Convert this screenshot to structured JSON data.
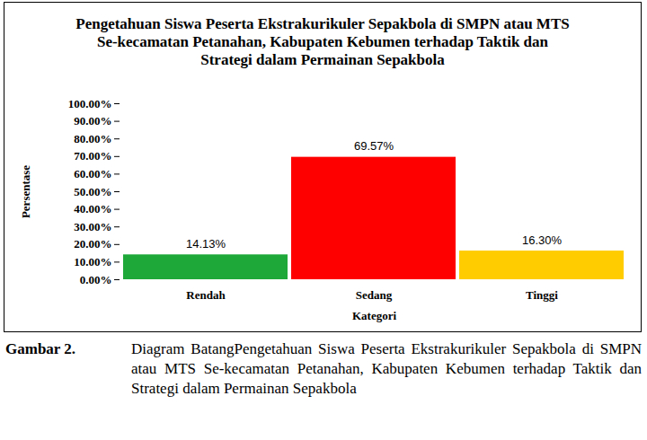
{
  "chart_data": {
    "type": "bar",
    "title": "Pengetahuan Siswa Peserta Ekstrakurikuler Sepakbola di SMPN atau MTS  Se-kecamatan Petanahan, Kabupaten Kebumen terhadap Taktik dan Strategi dalam Permainan Sepakbola",
    "x_label": "Kategori",
    "y_label": "Persentase",
    "categories": [
      "Rendah",
      "Sedang",
      "Tinggi"
    ],
    "values": [
      14.13,
      69.57,
      16.3
    ],
    "value_labels": [
      "14.13%",
      "69.57%",
      "16.30%"
    ],
    "colors": [
      "#1fa83a",
      "#ff0000",
      "#ffcc00"
    ],
    "data_labels": true,
    "grid": false,
    "ylim": [
      0,
      100
    ],
    "yticks": [
      {
        "value": 0,
        "label": "0.00%"
      },
      {
        "value": 10,
        "label": "10.00%"
      },
      {
        "value": 20,
        "label": "20.00%"
      },
      {
        "value": 30,
        "label": "30.00%"
      },
      {
        "value": 40,
        "label": "40.00%"
      },
      {
        "value": 50,
        "label": "50.00%"
      },
      {
        "value": 60,
        "label": "60.00%"
      },
      {
        "value": 70,
        "label": "70.00%"
      },
      {
        "value": 80,
        "label": "80.00%"
      },
      {
        "value": 90,
        "label": "90.00%"
      },
      {
        "value": 100,
        "label": "100.00%"
      }
    ],
    "caption": {
      "label": "Gambar 2.",
      "text": "Diagram BatangPengetahuan Siswa Peserta Ekstrakurikuler Sepakbola di SMPN atau MTS Se-kecamatan Petanahan, Kabupaten Kebumen terhadap Taktik dan Strategi dalam Permainan Sepakbola"
    }
  }
}
